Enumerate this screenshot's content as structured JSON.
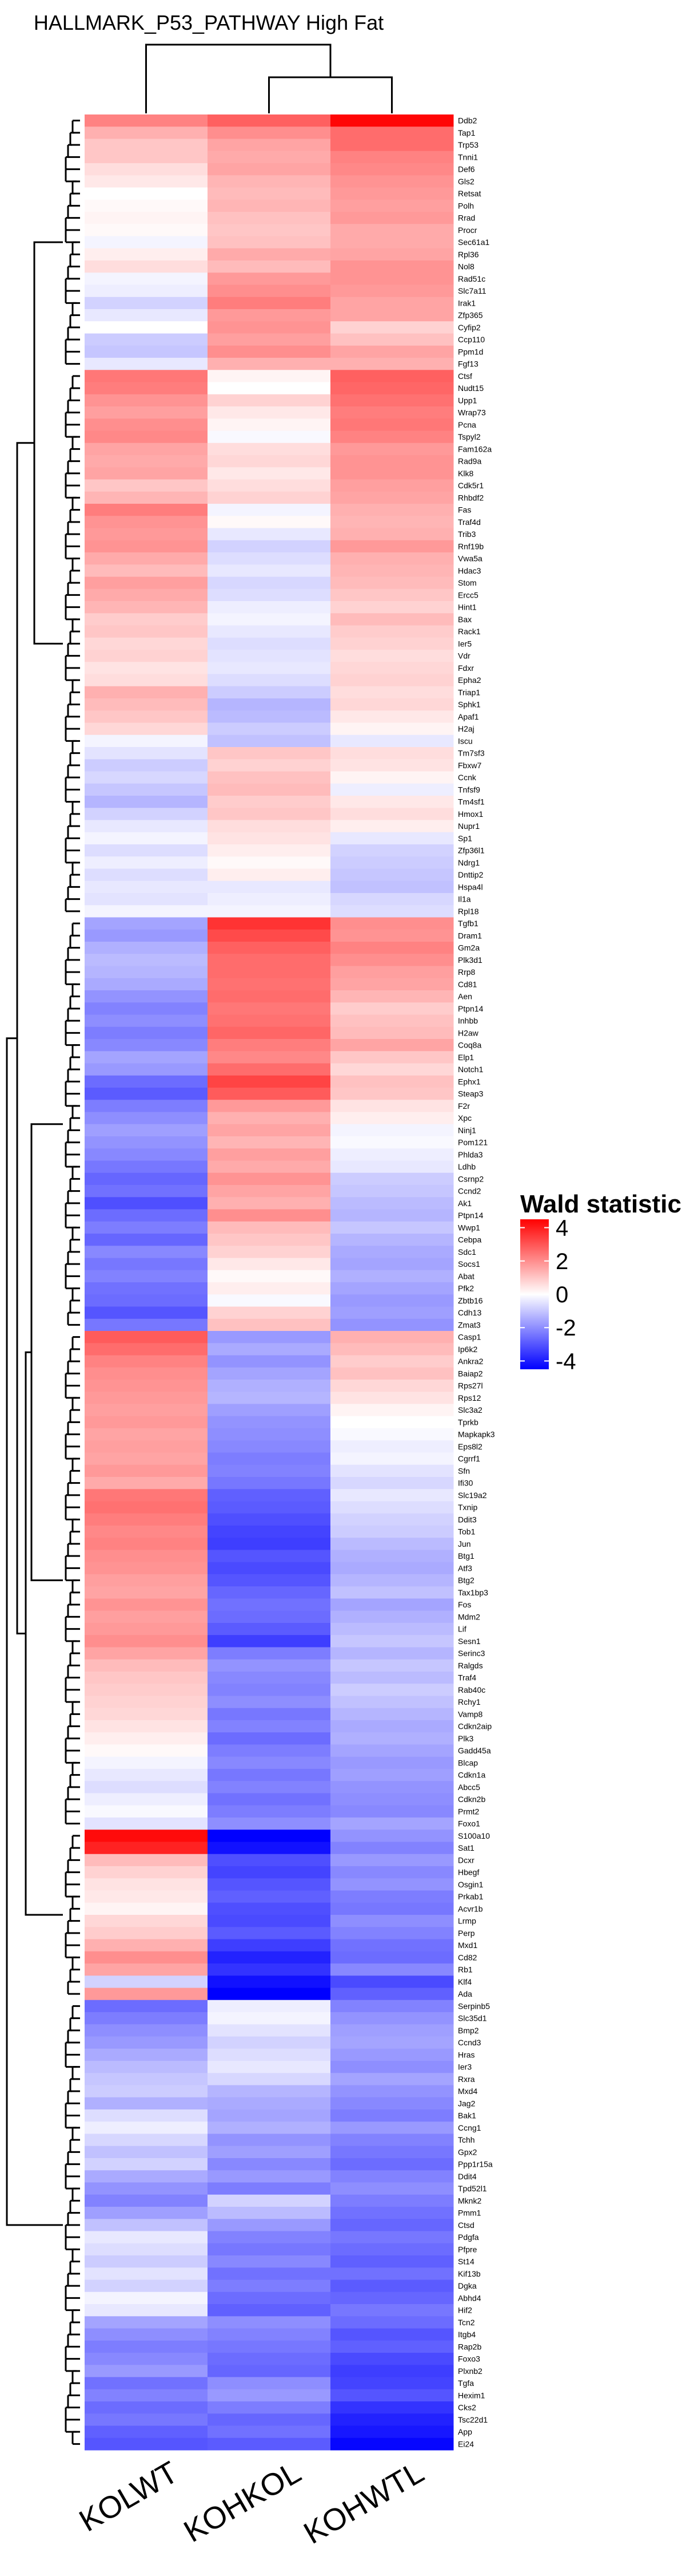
{
  "chart_data": {
    "type": "heatmap",
    "title": "HALLMARK_P53_PATHWAY High Fat",
    "columns": [
      "KOLWT",
      "KOHKOL",
      "KOHWTL"
    ],
    "legend": {
      "title": "Wald statistic",
      "ticks": [
        4,
        2,
        0,
        -2,
        -4
      ],
      "range": [
        -4.5,
        4.5
      ],
      "colors": {
        "low": "#0000ff",
        "mid": "#ffffff",
        "high": "#ff0000"
      },
      "placement": "right"
    },
    "genes": [
      "Ddb2",
      "Tap1",
      "Trp53",
      "Tnni1",
      "Def6",
      "Gls2",
      "Retsat",
      "Polh",
      "Rrad",
      "Procr",
      "Sec61a1",
      "Rpl36",
      "Nol8",
      "Rad51c",
      "Slc7a11",
      "Irak1",
      "Zfp365",
      "Cyfip2",
      "Ccp110",
      "Ppm1d",
      "Fgf13",
      "Ctsf",
      "Nudt15",
      "Upp1",
      "Wrap73",
      "Pcna",
      "Tspyl2",
      "Fam162a",
      "Rad9a",
      "Klk8",
      "Cdk5r1",
      "Rhbdf2",
      "Fas",
      "Traf4d",
      "Trib3",
      "Rnf19b",
      "Vwa5a",
      "Hdac3",
      "Stom",
      "Ercc5",
      "Hint1",
      "Bax",
      "Rack1",
      "Ier5",
      "Vdr",
      "Fdxr",
      "Epha2",
      "Triap1",
      "Sphk1",
      "Apaf1",
      "H2aj",
      "Iscu",
      "Tm7sf3",
      "Fbxw7",
      "Ccnk",
      "Tnfsf9",
      "Tm4sf1",
      "Hmox1",
      "Nupr1",
      "Sp1",
      "Zfp36l1",
      "Ndrg1",
      "Dnttip2",
      "Hspa4l",
      "Il1a",
      "Rpl18",
      "Tgfb1",
      "Dram1",
      "Gm2a",
      "Plk3d1",
      "Rrp8",
      "Cd81",
      "Aen",
      "Ptpn14",
      "Inhbb",
      "H2aw",
      "Coq8a",
      "Elp1",
      "Notch1",
      "Ephx1",
      "Steap3",
      "F2r",
      "Xpc",
      "Ninj1",
      "Pom121",
      "Phlda3",
      "Ldhb",
      "Csrnp2",
      "Ccnd2",
      "Ak1",
      "Ptpn14",
      "Wwp1",
      "Cebpa",
      "Sdc1",
      "Socs1",
      "Abat",
      "Pfk2",
      "Zbtb16",
      "Cdh13",
      "Zmat3",
      "Casp1",
      "Ip6k2",
      "Ankra2",
      "Baiap2",
      "Rps27l",
      "Rps12",
      "Slc3a2",
      "Tprkb",
      "Mapkapk3",
      "Eps8l2",
      "Cgrrf1",
      "Sfn",
      "Ifi30",
      "Slc19a2",
      "Txnip",
      "Ddit3",
      "Tob1",
      "Jun",
      "Btg1",
      "Atf3",
      "Btg2",
      "Tax1bp3",
      "Fos",
      "Mdm2",
      "Lif",
      "Sesn1",
      "Serinc3",
      "Ralgds",
      "Traf4",
      "Rab40c",
      "Rchy1",
      "Vamp8",
      "Cdkn2aip",
      "Plk3",
      "Gadd45a",
      "Blcap",
      "Cdkn1a",
      "Abcc5",
      "Cdkn2b",
      "Prmt2",
      "Foxo1",
      "S100a10",
      "Sat1",
      "Dcxr",
      "Hbegf",
      "Osgin1",
      "Prkab1",
      "Acvr1b",
      "Lrmp",
      "Perp",
      "Mxd1",
      "Cd82",
      "Rb1",
      "Klf4",
      "Ada",
      "Serpinb5",
      "Slc35d1",
      "Bmp2",
      "Ccnd3",
      "Hras",
      "Ier3",
      "Rxra",
      "Mxd4",
      "Jag2",
      "Bak1",
      "Ccng1",
      "Tchh",
      "Gpx2",
      "Ppp1r15a",
      "Ddit4",
      "Tpd52l1",
      "Mknk2",
      "Pmm1",
      "Ctsd",
      "Pdgfa",
      "Pfpre",
      "St14",
      "Kif13b",
      "Dgka",
      "Abhd4",
      "Hif2",
      "Tcn2",
      "Itgb4",
      "Rap2b",
      "Foxo3",
      "Plxnb2",
      "Tgfa",
      "Hexim1",
      "Cks2",
      "Tsc22d1",
      "App",
      "Ei24"
    ],
    "values": [
      [
        2.2,
        2.8,
        4.4
      ],
      [
        1.4,
        2.0,
        2.6
      ],
      [
        1.0,
        1.6,
        2.6
      ],
      [
        1.0,
        1.5,
        2.2
      ],
      [
        0.6,
        1.6,
        2.1
      ],
      [
        0.4,
        1.3,
        1.9
      ],
      [
        0.0,
        1.2,
        1.8
      ],
      [
        0.1,
        1.3,
        1.7
      ],
      [
        0.2,
        1.1,
        1.8
      ],
      [
        0.1,
        1.0,
        1.5
      ],
      [
        -0.2,
        1.1,
        1.5
      ],
      [
        0.3,
        1.5,
        1.6
      ],
      [
        0.6,
        1.2,
        1.9
      ],
      [
        -0.2,
        1.8,
        1.9
      ],
      [
        -0.3,
        2.0,
        1.8
      ],
      [
        -0.8,
        2.3,
        1.6
      ],
      [
        -0.4,
        1.8,
        1.6
      ],
      [
        0.0,
        1.9,
        0.8
      ],
      [
        -0.9,
        1.7,
        1.1
      ],
      [
        -1.0,
        2.0,
        1.6
      ],
      [
        -0.4,
        1.4,
        1.4
      ],
      [
        2.4,
        0.2,
        2.8
      ],
      [
        2.3,
        0.0,
        2.7
      ],
      [
        1.9,
        0.8,
        2.5
      ],
      [
        1.7,
        0.4,
        2.3
      ],
      [
        2.0,
        0.2,
        2.4
      ],
      [
        2.1,
        -0.1,
        2.2
      ],
      [
        1.6,
        0.6,
        1.8
      ],
      [
        1.5,
        0.7,
        1.9
      ],
      [
        1.6,
        0.4,
        1.9
      ],
      [
        1.0,
        0.6,
        1.7
      ],
      [
        1.3,
        0.8,
        1.6
      ],
      [
        2.3,
        -0.2,
        1.4
      ],
      [
        1.9,
        0.1,
        1.3
      ],
      [
        1.8,
        -0.4,
        1.4
      ],
      [
        1.9,
        -0.8,
        1.8
      ],
      [
        1.5,
        -0.6,
        1.4
      ],
      [
        1.2,
        -0.4,
        1.3
      ],
      [
        1.7,
        -0.7,
        1.2
      ],
      [
        1.5,
        -0.6,
        1.0
      ],
      [
        1.3,
        -0.3,
        0.8
      ],
      [
        0.9,
        -0.2,
        1.2
      ],
      [
        1.0,
        -0.4,
        0.9
      ],
      [
        0.7,
        -0.6,
        0.8
      ],
      [
        0.8,
        -0.5,
        0.6
      ],
      [
        0.5,
        -0.4,
        0.7
      ],
      [
        0.6,
        -0.6,
        0.8
      ],
      [
        1.4,
        -0.9,
        0.6
      ],
      [
        1.2,
        -1.3,
        0.7
      ],
      [
        1.0,
        -1.2,
        0.4
      ],
      [
        0.7,
        -0.9,
        0.2
      ],
      [
        -0.2,
        -1.1,
        -0.4
      ],
      [
        -0.5,
        1.0,
        0.6
      ],
      [
        -0.9,
        0.8,
        0.5
      ],
      [
        -0.7,
        1.1,
        0.2
      ],
      [
        -1.0,
        1.2,
        -0.3
      ],
      [
        -1.3,
        0.9,
        0.4
      ],
      [
        -0.8,
        1.0,
        0.6
      ],
      [
        -0.4,
        0.6,
        0.3
      ],
      [
        -0.2,
        0.5,
        -0.4
      ],
      [
        -0.6,
        0.3,
        -0.8
      ],
      [
        -0.3,
        0.1,
        -0.9
      ],
      [
        -0.6,
        0.3,
        -1.0
      ],
      [
        -0.4,
        -0.4,
        -1.1
      ],
      [
        -0.5,
        -0.3,
        -0.7
      ],
      [
        -0.2,
        -0.2,
        -0.6
      ],
      [
        -1.6,
        3.6,
        2.0
      ],
      [
        -1.8,
        3.2,
        1.9
      ],
      [
        -1.4,
        2.8,
        2.2
      ],
      [
        -1.2,
        2.6,
        2.0
      ],
      [
        -1.3,
        2.6,
        1.7
      ],
      [
        -1.5,
        2.5,
        1.6
      ],
      [
        -1.9,
        2.6,
        1.3
      ],
      [
        -2.2,
        2.4,
        0.9
      ],
      [
        -2.0,
        2.5,
        1.1
      ],
      [
        -2.3,
        2.7,
        1.2
      ],
      [
        -2.1,
        2.3,
        1.6
      ],
      [
        -1.6,
        2.1,
        1.0
      ],
      [
        -1.8,
        2.6,
        0.7
      ],
      [
        -2.6,
        3.3,
        1.1
      ],
      [
        -2.9,
        2.9,
        1.0
      ],
      [
        -2.3,
        1.8,
        0.5
      ],
      [
        -2.0,
        1.4,
        0.3
      ],
      [
        -1.7,
        1.6,
        -0.2
      ],
      [
        -1.9,
        1.3,
        -0.1
      ],
      [
        -2.1,
        1.7,
        -0.3
      ],
      [
        -2.4,
        1.5,
        -0.4
      ],
      [
        -2.7,
        1.9,
        -0.9
      ],
      [
        -2.5,
        1.6,
        -1.0
      ],
      [
        -3.1,
        1.4,
        -1.2
      ],
      [
        -2.6,
        2.0,
        -1.3
      ],
      [
        -2.3,
        1.2,
        -1.0
      ],
      [
        -2.7,
        1.0,
        -1.3
      ],
      [
        -2.1,
        0.8,
        -1.5
      ],
      [
        -2.4,
        0.4,
        -1.6
      ],
      [
        -2.2,
        0.1,
        -1.4
      ],
      [
        -2.5,
        0.3,
        -1.6
      ],
      [
        -2.6,
        -0.1,
        -1.8
      ],
      [
        -3.0,
        0.8,
        -1.7
      ],
      [
        -2.4,
        1.1,
        -1.9
      ],
      [
        2.9,
        -1.8,
        1.4
      ],
      [
        2.6,
        -1.5,
        1.2
      ],
      [
        2.2,
        -1.9,
        0.9
      ],
      [
        2.0,
        -1.6,
        1.1
      ],
      [
        1.9,
        -1.4,
        0.7
      ],
      [
        1.8,
        -1.3,
        0.5
      ],
      [
        1.7,
        -1.7,
        0.2
      ],
      [
        1.8,
        -1.9,
        0.0
      ],
      [
        1.6,
        -2.0,
        -0.1
      ],
      [
        1.7,
        -2.1,
        -0.3
      ],
      [
        1.6,
        -2.3,
        -0.2
      ],
      [
        1.8,
        -2.2,
        -0.5
      ],
      [
        1.5,
        -2.4,
        -0.7
      ],
      [
        2.4,
        -2.8,
        -0.4
      ],
      [
        2.5,
        -2.9,
        -0.6
      ],
      [
        2.3,
        -3.1,
        -0.8
      ],
      [
        2.1,
        -3.3,
        -0.9
      ],
      [
        2.2,
        -3.4,
        -1.2
      ],
      [
        2.0,
        -3.0,
        -1.4
      ],
      [
        1.9,
        -3.2,
        -1.5
      ],
      [
        1.7,
        -3.0,
        -1.3
      ],
      [
        1.6,
        -2.7,
        -1.1
      ],
      [
        1.9,
        -2.5,
        -1.6
      ],
      [
        1.7,
        -2.6,
        -1.4
      ],
      [
        1.8,
        -2.9,
        -1.2
      ],
      [
        2.0,
        -3.4,
        -1.0
      ],
      [
        1.6,
        -2.3,
        -1.3
      ],
      [
        1.2,
        -1.9,
        -1.0
      ],
      [
        1.0,
        -2.1,
        -1.2
      ],
      [
        0.9,
        -2.2,
        -0.9
      ],
      [
        0.8,
        -2.0,
        -1.1
      ],
      [
        0.7,
        -2.4,
        -1.3
      ],
      [
        0.5,
        -2.2,
        -1.5
      ],
      [
        0.3,
        -2.6,
        -1.4
      ],
      [
        0.1,
        -2.3,
        -1.6
      ],
      [
        -0.2,
        -2.1,
        -1.8
      ],
      [
        -0.4,
        -2.4,
        -1.7
      ],
      [
        -0.6,
        -2.2,
        -1.9
      ],
      [
        -0.3,
        -2.5,
        -2.0
      ],
      [
        -0.1,
        -2.3,
        -2.1
      ],
      [
        -0.5,
        -2.0,
        -1.6
      ],
      [
        4.3,
        -4.5,
        -1.9
      ],
      [
        3.9,
        -4.2,
        -2.2
      ],
      [
        1.2,
        -3.1,
        -1.8
      ],
      [
        0.8,
        -3.3,
        -2.1
      ],
      [
        0.5,
        -3.0,
        -1.9
      ],
      [
        0.4,
        -2.8,
        -2.3
      ],
      [
        0.2,
        -3.1,
        -2.4
      ],
      [
        0.7,
        -3.2,
        -2.0
      ],
      [
        0.9,
        -2.9,
        -2.2
      ],
      [
        1.4,
        -3.4,
        -2.5
      ],
      [
        2.0,
        -3.9,
        -2.6
      ],
      [
        1.6,
        -3.6,
        -2.1
      ],
      [
        -0.8,
        -4.2,
        -3.2
      ],
      [
        1.8,
        -4.6,
        -2.8
      ],
      [
        -2.6,
        -0.3,
        -2.2
      ],
      [
        -2.3,
        -0.2,
        -1.9
      ],
      [
        -2.0,
        -0.5,
        -1.7
      ],
      [
        -1.8,
        -0.8,
        -1.6
      ],
      [
        -1.5,
        -0.6,
        -1.8
      ],
      [
        -1.2,
        -0.4,
        -2.0
      ],
      [
        -1.0,
        -0.7,
        -1.6
      ],
      [
        -0.9,
        -1.3,
        -1.9
      ],
      [
        -1.4,
        -1.5,
        -2.1
      ],
      [
        -0.6,
        -1.6,
        -2.3
      ],
      [
        -0.3,
        -1.4,
        -1.8
      ],
      [
        -0.7,
        -1.9,
        -2.2
      ],
      [
        -1.1,
        -1.7,
        -2.4
      ],
      [
        -0.8,
        -2.1,
        -2.6
      ],
      [
        -1.5,
        -1.8,
        -2.2
      ],
      [
        -1.9,
        -2.3,
        -2.0
      ],
      [
        -2.2,
        -0.8,
        -2.3
      ],
      [
        -1.7,
        -1.2,
        -2.5
      ],
      [
        -1.1,
        -1.8,
        -2.7
      ],
      [
        -0.4,
        -2.2,
        -2.4
      ],
      [
        -0.6,
        -2.4,
        -2.6
      ],
      [
        -0.9,
        -2.1,
        -2.8
      ],
      [
        -0.5,
        -2.5,
        -2.5
      ],
      [
        -0.8,
        -2.3,
        -2.9
      ],
      [
        -0.2,
        -2.6,
        -2.7
      ],
      [
        -0.4,
        -2.8,
        -2.4
      ],
      [
        -1.6,
        -2.0,
        -2.6
      ],
      [
        -2.0,
        -2.2,
        -3.0
      ],
      [
        -2.3,
        -2.4,
        -2.8
      ],
      [
        -2.1,
        -2.6,
        -3.2
      ],
      [
        -1.8,
        -2.7,
        -3.4
      ],
      [
        -2.5,
        -2.0,
        -3.3
      ],
      [
        -2.2,
        -1.8,
        -3.0
      ],
      [
        -2.6,
        -2.3,
        -3.6
      ],
      [
        -2.4,
        -2.7,
        -3.9
      ],
      [
        -2.8,
        -2.5,
        -4.1
      ],
      [
        -3.0,
        -2.9,
        -4.4
      ]
    ]
  }
}
